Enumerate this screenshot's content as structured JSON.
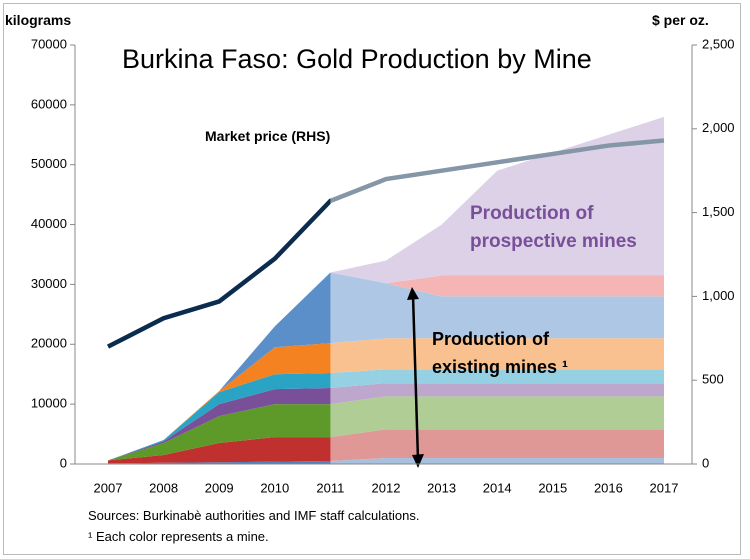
{
  "chart_data": {
    "type": "stacked_area",
    "title": "Burkina Faso: Gold Production by Mine",
    "ylabel": "kilograms",
    "y2label": "$ per oz.",
    "annotations": [
      "Market price (RHS)",
      "Production of prospective mines",
      "Production of existing mines ¹"
    ],
    "notes": [
      "Sources: Burkinabè authorities and IMF staff calculations.",
      "¹ Each color represents a mine."
    ],
    "categories": [
      "2007",
      "2008",
      "2009",
      "2010",
      "2011",
      "2012",
      "2013",
      "2014",
      "2015",
      "2016",
      "2017"
    ],
    "series": [
      {
        "color": "#4f81bd",
        "values": [
          100,
          200,
          300,
          400,
          500,
          1000,
          1000,
          1000,
          1000,
          1000,
          1000
        ]
      },
      {
        "color": "#c0302e",
        "values": [
          500,
          1300,
          3200,
          4100,
          4000,
          4800,
          4800,
          4800,
          4800,
          4800,
          4800
        ]
      },
      {
        "color": "#5e9a2a",
        "values": [
          0,
          2000,
          4500,
          5500,
          5500,
          5500,
          5500,
          5500,
          5500,
          5500,
          5500
        ]
      },
      {
        "color": "#7a4f9a",
        "values": [
          0,
          300,
          2000,
          2500,
          2700,
          2200,
          2200,
          2200,
          2200,
          2200,
          2200
        ]
      },
      {
        "color": "#2aa3c4",
        "values": [
          0,
          200,
          2000,
          2500,
          2500,
          2300,
          2300,
          2300,
          2300,
          2300,
          2300
        ]
      },
      {
        "color": "#f58220",
        "values": [
          0,
          0,
          200,
          4500,
          5000,
          5200,
          5200,
          5200,
          5200,
          5200,
          5200
        ]
      },
      {
        "color": "#5b8fca",
        "values": [
          0,
          0,
          0,
          3500,
          11800,
          9200,
          7000,
          7000,
          7000,
          7000,
          7000
        ]
      },
      {
        "color": "#ec6a6a",
        "values": [
          0,
          0,
          0,
          0,
          0,
          0,
          3500,
          3500,
          3500,
          3500,
          3500
        ]
      },
      {
        "color": "#b9a3cf",
        "values": [
          0,
          0,
          0,
          0,
          0,
          3800,
          8500,
          17500,
          20500,
          23500,
          26500
        ]
      },
      {
        "color": "#0b2c4f",
        "axis": "y2",
        "line": true,
        "values": [
          700,
          870,
          970,
          1225,
          1570,
          1700,
          1750,
          1800,
          1850,
          1900,
          1930
        ]
      }
    ],
    "ylim": [
      0,
      70000
    ],
    "yticks": [
      0,
      10000,
      20000,
      30000,
      40000,
      50000,
      60000,
      70000
    ],
    "y2lim": [
      0,
      2500
    ],
    "y2ticks": [
      0,
      500,
      {
        "value": 1000,
        "label": "1,000"
      },
      {
        "value": 1500,
        "label": "1,500"
      },
      {
        "value": 2000,
        "label": "2,000"
      },
      {
        "value": 2500,
        "label": "2,500"
      }
    ]
  }
}
